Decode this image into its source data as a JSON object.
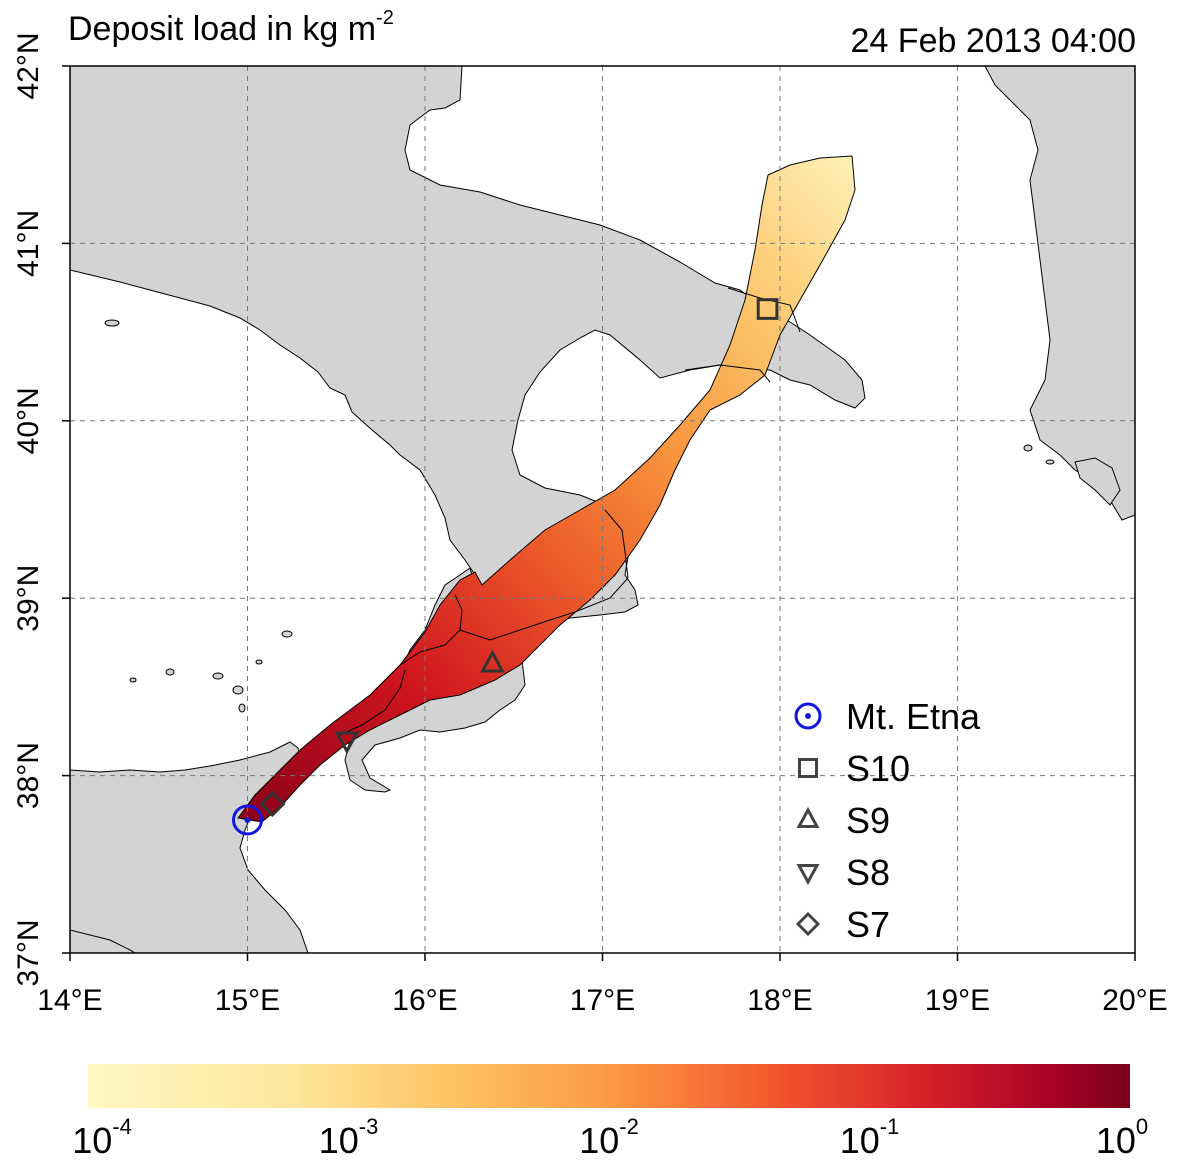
{
  "title": {
    "text": "Deposit load in kg m",
    "sup": "-2"
  },
  "timestamp": "24 Feb 2013 04:00",
  "map": {
    "lon_range": [
      14,
      20
    ],
    "lat_range": [
      37,
      42
    ],
    "lon_ticks": [
      "14°E",
      "15°E",
      "16°E",
      "17°E",
      "18°E",
      "19°E",
      "20°E"
    ],
    "lat_ticks": [
      "37°N",
      "38°N",
      "39°N",
      "40°N",
      "41°N",
      "42°N"
    ],
    "grid": "dashed"
  },
  "legend": [
    {
      "label": "Mt. Etna",
      "symbol": "circle-dot",
      "color": "#1515e0"
    },
    {
      "label": "S10",
      "symbol": "square",
      "color": "#444444"
    },
    {
      "label": "S9",
      "symbol": "triangle-up",
      "color": "#444444"
    },
    {
      "label": "S8",
      "symbol": "triangle-down",
      "color": "#444444"
    },
    {
      "label": "S7",
      "symbol": "diamond",
      "color": "#444444"
    }
  ],
  "sites": [
    {
      "name": "Mt. Etna",
      "lon": 15.0,
      "lat": 37.75
    },
    {
      "name": "S10",
      "lon": 17.93,
      "lat": 40.63
    },
    {
      "name": "S9",
      "lon": 16.38,
      "lat": 38.63
    },
    {
      "name": "S8",
      "lon": 15.56,
      "lat": 38.2
    },
    {
      "name": "S7",
      "lon": 15.14,
      "lat": 37.84
    }
  ],
  "colorbar": {
    "labels": [
      {
        "base": "10",
        "exp": "-4"
      },
      {
        "base": "10",
        "exp": "-3"
      },
      {
        "base": "10",
        "exp": "-2"
      },
      {
        "base": "10",
        "exp": "-1"
      },
      {
        "base": "10",
        "exp": "0"
      }
    ],
    "colors": [
      "#fff7c0",
      "#fdd17a",
      "#fb9640",
      "#f04a26",
      "#b4001e",
      "#7a001c"
    ]
  },
  "colors": {
    "land": "#d3d3d3",
    "sea": "#ffffff",
    "coast": "#000000"
  }
}
